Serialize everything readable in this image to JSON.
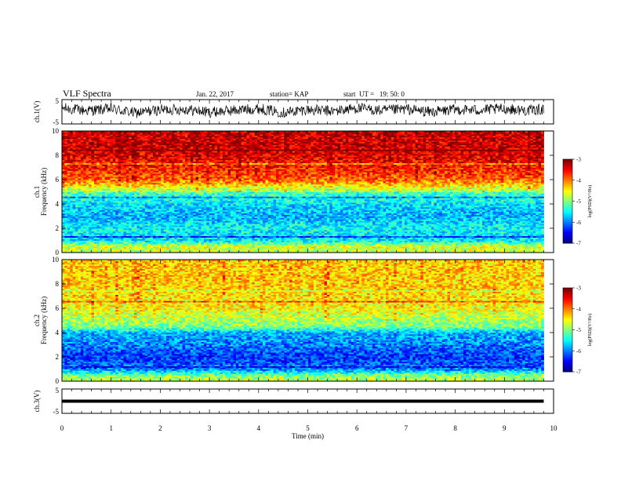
{
  "header": {
    "title": "VLF Spectra",
    "date": "Jan. 22, 2017",
    "station": "station= KAP",
    "start": "start  UT =   19: 50: 0"
  },
  "colors": {
    "waveform": "#000000",
    "colormap": [
      "#00007f",
      "#0000ff",
      "#007fff",
      "#00ffff",
      "#7fff7f",
      "#ffff00",
      "#ff7f00",
      "#ff0000",
      "#7f0000"
    ]
  },
  "chart_data": [
    {
      "type": "line",
      "panel": "ch1-waveform",
      "ylabel": "ch.1(V)",
      "ylim": [
        -5,
        5
      ],
      "yticks": [
        "5",
        "-5"
      ],
      "x": [
        0,
        0.5,
        1,
        1.5,
        2,
        2.5,
        3,
        3.5,
        4,
        4.5,
        5,
        5.5,
        6,
        6.5,
        7,
        7.5,
        8,
        8.5,
        9,
        9.5,
        9.8
      ],
      "y": [
        1.5,
        0.5,
        1.2,
        -0.5,
        0.8,
        1.0,
        -0.2,
        0.6,
        1.3,
        -0.3,
        0.9,
        0.2,
        1.5,
        0.4,
        1.1,
        -0.1,
        0.9,
        0.7,
        1.2,
        0.5,
        1.0
      ]
    },
    {
      "type": "heatmap",
      "panel": "ch1-spectrogram",
      "ylabel": "ch.1\nFrequency (kHz)",
      "ylim": [
        0,
        10
      ],
      "yticks": [
        "0",
        "2",
        "4",
        "6",
        "8",
        "10"
      ],
      "colorbar_label": "log(PSD)(V²/Hz)",
      "colorbar_ticks": [
        "-3",
        "-4",
        "-5",
        "-6",
        "-7"
      ],
      "clim": [
        -7,
        -3
      ],
      "freq_profile": [
        {
          "f": 0.0,
          "v": -4.8
        },
        {
          "f": 0.5,
          "v": -4.6
        },
        {
          "f": 1.0,
          "v": -5.6
        },
        {
          "f": 2.0,
          "v": -5.5
        },
        {
          "f": 3.0,
          "v": -5.8
        },
        {
          "f": 4.0,
          "v": -5.6
        },
        {
          "f": 5.0,
          "v": -5.2
        },
        {
          "f": 5.5,
          "v": -4.4
        },
        {
          "f": 6.0,
          "v": -3.9
        },
        {
          "f": 7.0,
          "v": -3.6
        },
        {
          "f": 8.0,
          "v": -3.4
        },
        {
          "f": 9.0,
          "v": -3.3
        },
        {
          "f": 10.0,
          "v": -3.3
        }
      ]
    },
    {
      "type": "heatmap",
      "panel": "ch2-spectrogram",
      "ylabel": "ch.2\nFrequency (kHz)",
      "ylim": [
        0,
        10
      ],
      "yticks": [
        "0",
        "2",
        "4",
        "6",
        "8",
        "10"
      ],
      "colorbar_label": "log(PSD)(V²/Hz)",
      "colorbar_ticks": [
        "-3",
        "-4",
        "-5",
        "-6",
        "-7"
      ],
      "clim": [
        -7,
        -3
      ],
      "freq_profile": [
        {
          "f": 0.0,
          "v": -4.7
        },
        {
          "f": 0.5,
          "v": -5.0
        },
        {
          "f": 1.0,
          "v": -6.0
        },
        {
          "f": 2.0,
          "v": -6.3
        },
        {
          "f": 3.0,
          "v": -6.0
        },
        {
          "f": 4.0,
          "v": -5.8
        },
        {
          "f": 4.5,
          "v": -5.0
        },
        {
          "f": 5.5,
          "v": -4.7
        },
        {
          "f": 6.0,
          "v": -4.5
        },
        {
          "f": 7.0,
          "v": -4.4
        },
        {
          "f": 8.0,
          "v": -4.3
        },
        {
          "f": 9.0,
          "v": -4.3
        },
        {
          "f": 10.0,
          "v": -4.3
        }
      ]
    },
    {
      "type": "line",
      "panel": "ch3-waveform",
      "ylabel": "ch.3(V)",
      "ylim": [
        -5,
        5
      ],
      "yticks": [
        "5",
        "-5"
      ],
      "x": [
        0,
        9.8
      ],
      "y": [
        0,
        0
      ]
    }
  ],
  "xaxis": {
    "label": "Time  (min)",
    "ticks": [
      "0",
      "1",
      "2",
      "3",
      "4",
      "5",
      "6",
      "7",
      "8",
      "9",
      "10"
    ],
    "xlim": [
      0,
      10
    ],
    "data_end": 9.8
  }
}
